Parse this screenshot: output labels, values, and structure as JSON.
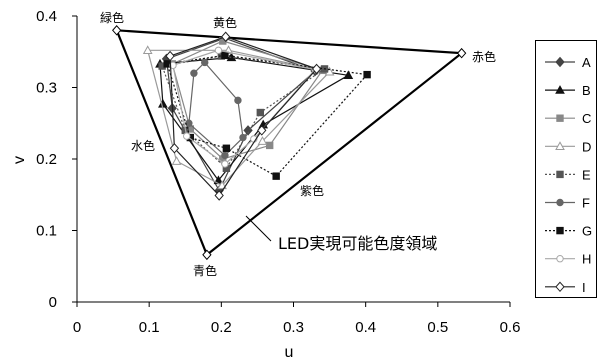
{
  "chart_data": {
    "type": "scatter",
    "xlabel": "u",
    "ylabel": "v",
    "xlim": [
      0,
      0.6
    ],
    "ylim": [
      0,
      0.4
    ],
    "xticks": [
      "0",
      "0.1",
      "0.2",
      "0.3",
      "0.4",
      "0.5",
      "0.6"
    ],
    "yticks": [
      "0",
      "0.1",
      "0.2",
      "0.3",
      "0.4"
    ],
    "grid": false,
    "legend": "right",
    "led_region": {
      "label": "LED実現可能色度領域",
      "color": "#000000",
      "marker": "diamond-open",
      "points": [
        [
          0.055,
          0.38
        ],
        [
          0.533,
          0.348
        ],
        [
          0.18,
          0.066
        ]
      ]
    },
    "annotations": [
      "緑色",
      "黄色",
      "赤色",
      "水色",
      "紫色",
      "青色"
    ],
    "series": [
      {
        "name": "A",
        "marker": "diamond-filled",
        "line": "solid",
        "color": "#444444",
        "points": [
          [
            0.205,
            0.369
          ],
          [
            0.33,
            0.323
          ],
          [
            0.237,
            0.24
          ],
          [
            0.197,
            0.156
          ],
          [
            0.132,
            0.271
          ],
          [
            0.124,
            0.34
          ]
        ]
      },
      {
        "name": "B",
        "marker": "triangle-filled",
        "line": "solid",
        "color": "#111111",
        "points": [
          [
            0.214,
            0.342
          ],
          [
            0.376,
            0.317
          ],
          [
            0.258,
            0.248
          ],
          [
            0.196,
            0.17
          ],
          [
            0.119,
            0.277
          ],
          [
            0.115,
            0.333
          ]
        ]
      },
      {
        "name": "C",
        "marker": "square-filled",
        "line": "solid",
        "color": "#888888",
        "points": [
          [
            0.202,
            0.365
          ],
          [
            0.34,
            0.324
          ],
          [
            0.267,
            0.219
          ],
          [
            0.202,
            0.2
          ],
          [
            0.157,
            0.242
          ],
          [
            0.132,
            0.333
          ]
        ]
      },
      {
        "name": "D",
        "marker": "triangle-open",
        "line": "solid",
        "color": "#9a9a9a",
        "points": [
          [
            0.21,
            0.352
          ],
          [
            0.35,
            0.322
          ],
          [
            0.257,
            0.225
          ],
          [
            0.201,
            0.163
          ],
          [
            0.138,
            0.197
          ],
          [
            0.098,
            0.352
          ]
        ]
      },
      {
        "name": "E",
        "marker": "square-filled",
        "line": "dotted",
        "color": "#555555",
        "points": [
          [
            0.2,
            0.344
          ],
          [
            0.343,
            0.326
          ],
          [
            0.254,
            0.265
          ],
          [
            0.207,
            0.187
          ],
          [
            0.15,
            0.24
          ],
          [
            0.118,
            0.33
          ]
        ]
      },
      {
        "name": "F",
        "marker": "circle-filled",
        "line": "solid",
        "color": "#666666",
        "points": [
          [
            0.177,
            0.335
          ],
          [
            0.223,
            0.282
          ],
          [
            0.23,
            0.23
          ],
          [
            0.205,
            0.205
          ],
          [
            0.155,
            0.25
          ],
          [
            0.162,
            0.32
          ]
        ]
      },
      {
        "name": "G",
        "marker": "square-filled",
        "line": "dotted",
        "color": "#111111",
        "points": [
          [
            0.205,
            0.345
          ],
          [
            0.402,
            0.318
          ],
          [
            0.276,
            0.176
          ],
          [
            0.207,
            0.215
          ],
          [
            0.157,
            0.23
          ],
          [
            0.125,
            0.333
          ]
        ]
      },
      {
        "name": "H",
        "marker": "circle-open",
        "line": "solid",
        "color": "#a8a8a8",
        "points": [
          [
            0.196,
            0.352
          ],
          [
            0.33,
            0.325
          ],
          [
            0.245,
            0.228
          ],
          [
            0.205,
            0.193
          ],
          [
            0.152,
            0.232
          ],
          [
            0.133,
            0.331
          ]
        ]
      },
      {
        "name": "I",
        "marker": "diamond-open",
        "line": "solid",
        "color": "#222222",
        "points": [
          [
            0.206,
            0.371
          ],
          [
            0.332,
            0.326
          ],
          [
            0.256,
            0.24
          ],
          [
            0.197,
            0.149
          ],
          [
            0.135,
            0.215
          ],
          [
            0.129,
            0.344
          ]
        ]
      }
    ]
  }
}
